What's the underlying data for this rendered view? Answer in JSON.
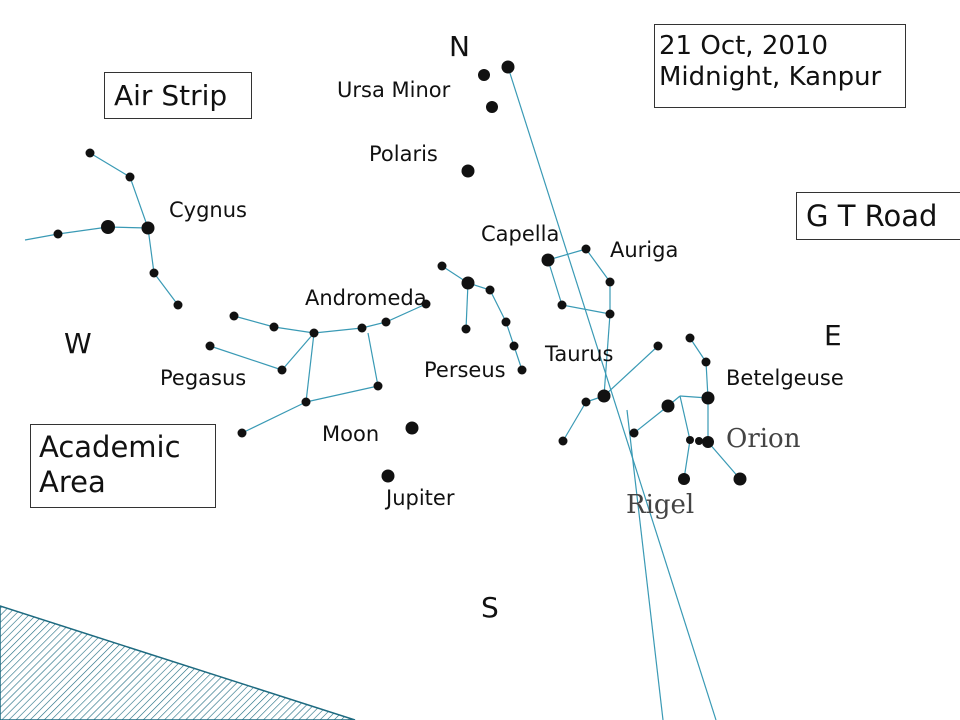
{
  "compass": {
    "north": "N",
    "south": "S",
    "east": "E",
    "west": "W"
  },
  "info": {
    "date": "21 Oct, 2010",
    "time_place": "Midnight, Kanpur"
  },
  "landmarks": {
    "air_strip": "Air Strip",
    "gt_road": "G T Road",
    "academic_line1": "Academic",
    "academic_line2": "Area"
  },
  "labels": {
    "ursa_minor": "Ursa Minor",
    "polaris": "Polaris",
    "cygnus": "Cygnus",
    "andromeda": "Andromeda",
    "pegasus": "Pegasus",
    "perseus": "Perseus",
    "capella": "Capella",
    "auriga": "Auriga",
    "taurus": "Taurus",
    "betelgeuse": "Betelgeuse",
    "orion": "Orion",
    "rigel": "Rigel",
    "moon": "Moon",
    "jupiter": "Jupiter"
  },
  "colors": {
    "lines": "#3a9ab5",
    "stars": "#111111",
    "hatch": "#1d6a80"
  }
}
